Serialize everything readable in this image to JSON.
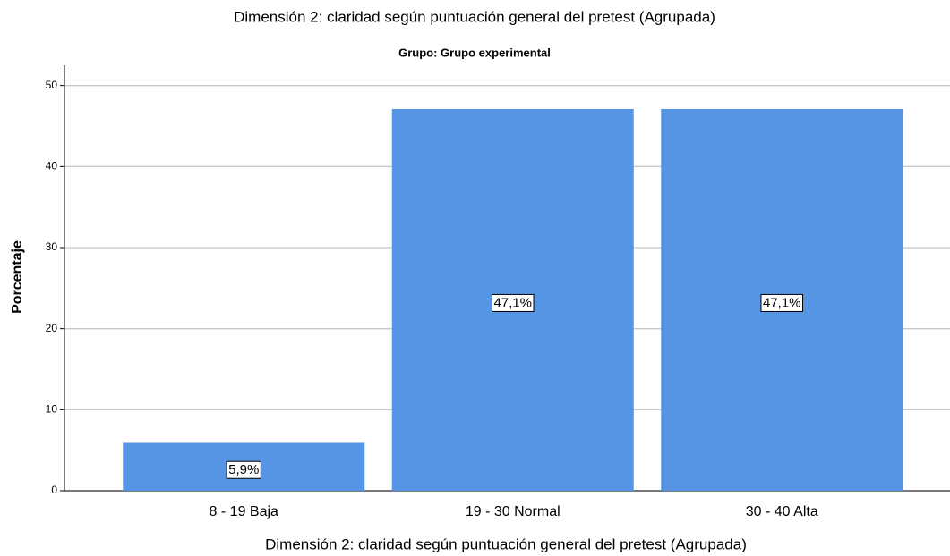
{
  "chart_data": {
    "type": "bar",
    "title": "Dimensión 2: claridad según puntuación general del pretest (Agrupada)",
    "subtitle": "Grupo: Grupo experimental",
    "x_label": "Dimensión 2: claridad según puntuación general del pretest (Agrupada)",
    "y_label": "Porcentaje",
    "categories": [
      "8 - 19 Baja",
      "19 - 30 Normal",
      "30 - 40 Alta"
    ],
    "values": [
      5.9,
      47.1,
      47.1
    ],
    "value_labels": [
      "5,9%",
      "47,1%",
      "47,1%"
    ],
    "color": "#5595e3",
    "ylim": [
      0,
      52.5
    ],
    "yticks": [
      0,
      10,
      20,
      30,
      40,
      50
    ],
    "grid": true
  }
}
